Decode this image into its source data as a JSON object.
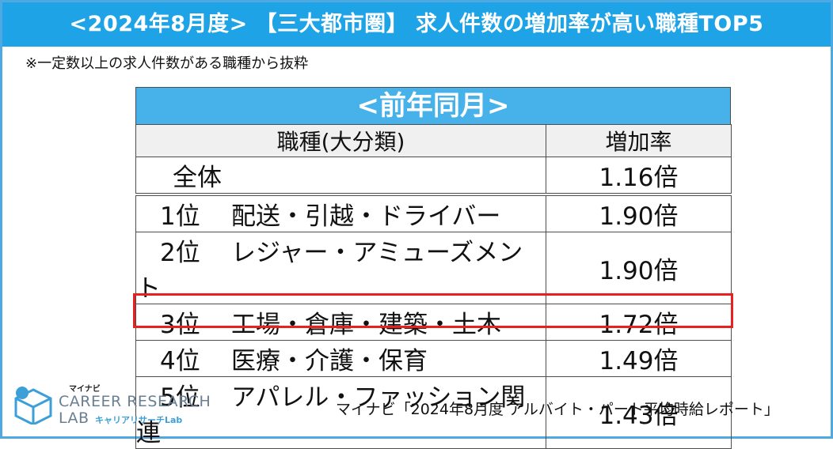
{
  "title": "<2024年8月度> 【三大都市圏】 求人件数の増加率が高い職種TOP5",
  "note": "※一定数以上の求人件数がある職種から抜粋",
  "table": {
    "header": "<前年同月>",
    "col_category": "職種(大分類)",
    "col_rate": "増加率",
    "total": {
      "label": "全体",
      "rate": "1.16倍"
    },
    "rows": [
      {
        "rank": "1位",
        "category": "配送・引越・ドライバー",
        "rate": "1.90倍"
      },
      {
        "rank": "2位",
        "category": "レジャー・アミューズメント",
        "rate": "1.90倍"
      },
      {
        "rank": "3位",
        "category": "工場・倉庫・建築・土木",
        "rate": "1.72倍"
      },
      {
        "rank": "4位",
        "category": "医療・介護・保育",
        "rate": "1.49倍"
      },
      {
        "rank": "5位",
        "category": "アパレル・ファッション関連",
        "rate": "1.43倍"
      }
    ]
  },
  "logo": {
    "brand_small": "マイナビ",
    "brand_main": "CAREER RESEARCH",
    "brand_lab": "LAB",
    "brand_sub": "キャリアリサーチLab"
  },
  "source": "マイナビ「2024年8月度 アルバイト・パート平均時給レポート」",
  "colors": {
    "title_bg": "#1ea3e6",
    "header_bg": "#47b1ea",
    "highlight": "#e8201e"
  }
}
